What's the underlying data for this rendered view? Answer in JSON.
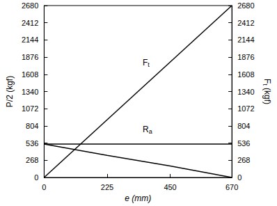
{
  "chart_data": {
    "type": "line",
    "xlabel": "e (mm)",
    "ylabel": "P/2 (kgf)",
    "y2label": "F t (kgf)",
    "xlim": [
      0,
      670
    ],
    "xticks": [
      0,
      225,
      450,
      670
    ],
    "ylim": [
      0,
      2680
    ],
    "yticks": [
      0,
      268,
      536,
      804,
      1072,
      1340,
      1608,
      1876,
      2144,
      2412,
      2680
    ],
    "y2lim": [
      0,
      2680
    ],
    "y2ticks": [
      0,
      268,
      536,
      804,
      1072,
      1340,
      1608,
      1876,
      2144,
      2412,
      2680
    ],
    "grid": false,
    "series": [
      {
        "name": "F t",
        "color": "#000000",
        "axis": "y2",
        "x": [
          0,
          670
        ],
        "values": [
          0,
          2680
        ]
      },
      {
        "name": "R a",
        "color": "#000000",
        "x": [
          0,
          670
        ],
        "values": [
          520,
          520
        ]
      },
      {
        "color": "#000000",
        "x": [
          0,
          225,
          450,
          670
        ],
        "values": [
          520,
          345,
          180,
          0
        ]
      }
    ]
  }
}
